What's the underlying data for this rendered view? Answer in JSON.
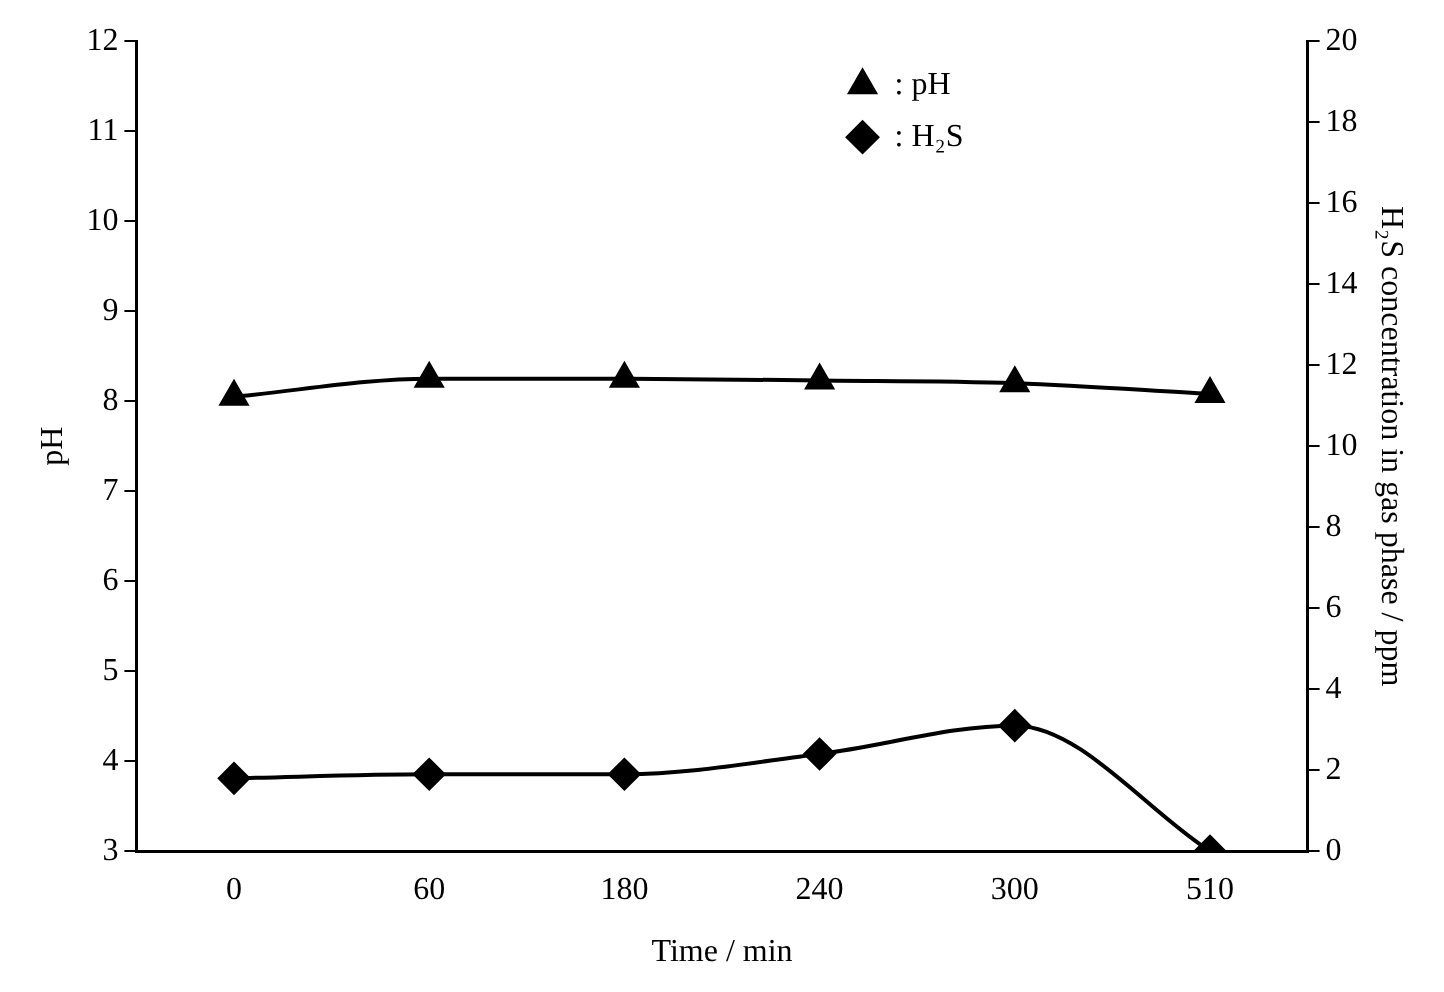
{
  "chart_data": {
    "type": "line",
    "xlabel": "Time / min",
    "ylabel": "pH",
    "y2label": "H₂S concentration in gas phase / ppm",
    "categories": [
      "0",
      "60",
      "180",
      "240",
      "300",
      "510"
    ],
    "series": [
      {
        "name": ": pH",
        "color": "#000000",
        "marker": "triangle",
        "values": [
          8.05,
          8.25,
          8.25,
          8.23,
          8.2,
          8.08
        ]
      },
      {
        "name": ": H₂S",
        "color": "#000000",
        "marker": "diamond",
        "axis": "y2",
        "values": [
          1.8,
          1.9,
          1.9,
          2.4,
          3.1,
          0
        ]
      }
    ],
    "ylim": [
      3,
      12
    ],
    "yticks": [
      3,
      4,
      5,
      6,
      7,
      8,
      9,
      10,
      11,
      12
    ],
    "y2lim": [
      0,
      20
    ],
    "y2ticks": [
      0,
      2,
      4,
      6,
      8,
      10,
      12,
      14,
      16,
      18,
      20
    ],
    "grid": false,
    "legend": "top right",
    "line_style": "solid"
  }
}
